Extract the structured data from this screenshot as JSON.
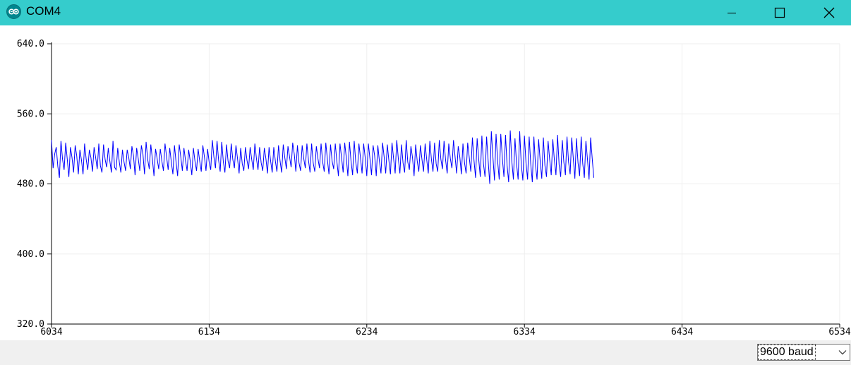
{
  "window": {
    "title": "COM4",
    "icon": "arduino-logo-icon",
    "controls": [
      "minimize-icon",
      "maximize-icon",
      "close-icon"
    ],
    "titlebar_color": "#35cccc"
  },
  "baud": {
    "selected": "9600 baud"
  },
  "chart_data": {
    "type": "line",
    "title": "",
    "xlabel": "",
    "ylabel": "",
    "xlim": [
      6034,
      6534
    ],
    "ylim": [
      320.0,
      640.0
    ],
    "x_ticks": [
      "6034",
      "6134",
      "6234",
      "6334",
      "6434",
      "6534"
    ],
    "y_ticks": [
      "640.0",
      "560.0",
      "480.0",
      "400.0",
      "320.0"
    ],
    "grid": true,
    "series_color": "#0000ff",
    "series": [
      {
        "x_start": 6034,
        "x_step": 1,
        "values": [
          530,
          498,
          514,
          522,
          500,
          487,
          529,
          508,
          496,
          527,
          508,
          488,
          522,
          510,
          493,
          524,
          512,
          491,
          519,
          507,
          491,
          526,
          508,
          496,
          519,
          510,
          494,
          522,
          510,
          497,
          526,
          501,
          493,
          525,
          508,
          499,
          521,
          506,
          493,
          529,
          499,
          496,
          521,
          505,
          493,
          519,
          505,
          495,
          519,
          510,
          497,
          523,
          512,
          490,
          521,
          509,
          495,
          524,
          514,
          491,
          528,
          508,
          497,
          525,
          508,
          489,
          520,
          509,
          497,
          520,
          506,
          495,
          526,
          511,
          496,
          521,
          505,
          491,
          524,
          505,
          489,
          525,
          511,
          495,
          521,
          507,
          495,
          519,
          506,
          490,
          521,
          506,
          495,
          520,
          506,
          494,
          524,
          511,
          495,
          520,
          505,
          496,
          530,
          511,
          498,
          529,
          507,
          494,
          528,
          505,
          493,
          525,
          506,
          498,
          526,
          508,
          498,
          524,
          509,
          492,
          521,
          503,
          495,
          522,
          507,
          497,
          522,
          508,
          496,
          526,
          509,
          496,
          522,
          504,
          495,
          521,
          509,
          492,
          522,
          506,
          493,
          522,
          506,
          494,
          524,
          506,
          493,
          525,
          510,
          497,
          523,
          511,
          499,
          527,
          514,
          494,
          524,
          504,
          495,
          524,
          509,
          498,
          526,
          507,
          493,
          526,
          504,
          494,
          523,
          509,
          498,
          526,
          505,
          494,
          527,
          508,
          491,
          525,
          506,
          497,
          526,
          506,
          489,
          526,
          510,
          493,
          527,
          510,
          489,
          528,
          506,
          490,
          529,
          505,
          492,
          526,
          510,
          492,
          526,
          510,
          489,
          526,
          509,
          490,
          524,
          512,
          489,
          524,
          506,
          492,
          527,
          511,
          492,
          525,
          507,
          491,
          527,
          509,
          492,
          530,
          509,
          492,
          525,
          504,
          493,
          530,
          505,
          496,
          523,
          510,
          489,
          525,
          506,
          494,
          524,
          508,
          494,
          526,
          508,
          492,
          529,
          508,
          494,
          527,
          503,
          494,
          530,
          508,
          497,
          529,
          507,
          492,
          526,
          509,
          498,
          530,
          511,
          492,
          523,
          511,
          491,
          526,
          504,
          492,
          527,
          510,
          494,
          533,
          507,
          487,
          532,
          508,
          488,
          535,
          503,
          488,
          534,
          506,
          480,
          540,
          511,
          484,
          537,
          506,
          485,
          537,
          509,
          488,
          536,
          501,
          482,
          541,
          506,
          485,
          532,
          503,
          485,
          540,
          502,
          484,
          535,
          504,
          485,
          534,
          503,
          482,
          534,
          502,
          485,
          531,
          506,
          486,
          533,
          501,
          488,
          529,
          508,
          490,
          531,
          507,
          490,
          536,
          502,
          488,
          530,
          505,
          490,
          534,
          505,
          491,
          533,
          509,
          486,
          532,
          504,
          489,
          534,
          503,
          487,
          529,
          508,
          485,
          533,
          509,
          487
        ]
      }
    ],
    "envelope_note": ""
  }
}
